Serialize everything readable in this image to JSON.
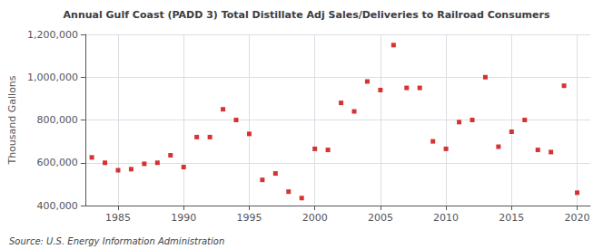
{
  "chart_data": {
    "type": "scatter",
    "title": "Annual Gulf Coast (PADD 3) Total Distillate Adj Sales/Deliveries to Railroad Consumers",
    "ylabel": "Thousand Gallons",
    "annotations": [
      "Source: U.S. Energy Information Administration"
    ],
    "x": [
      1983,
      1984,
      1985,
      1986,
      1987,
      1988,
      1989,
      1990,
      1991,
      1992,
      1993,
      1994,
      1995,
      1996,
      1997,
      1998,
      1999,
      2000,
      2001,
      2002,
      2003,
      2004,
      2005,
      2006,
      2007,
      2008,
      2009,
      2010,
      2011,
      2012,
      2013,
      2014,
      2015,
      2016,
      2017,
      2018,
      2019,
      2020
    ],
    "values": [
      625000,
      600000,
      565000,
      570000,
      595000,
      600000,
      635000,
      580000,
      720000,
      720000,
      850000,
      800000,
      735000,
      520000,
      550000,
      465000,
      435000,
      665000,
      660000,
      880000,
      840000,
      980000,
      940000,
      1150000,
      950000,
      950000,
      700000,
      665000,
      790000,
      800000,
      1000000,
      675000,
      745000,
      800000,
      660000,
      650000,
      960000,
      460000
    ],
    "color": "#cc0000",
    "marker": "square",
    "xlim": [
      1982.5,
      2021
    ],
    "xticks": [
      1985,
      1990,
      1995,
      2000,
      2005,
      2010,
      2015,
      2020
    ],
    "ylim": [
      400000,
      1200000
    ],
    "yticks": [
      {
        "value": 400000,
        "label": "400,000"
      },
      {
        "value": 600000,
        "label": "600,000"
      },
      {
        "value": 800000,
        "label": "800,000"
      },
      {
        "value": 1000000,
        "label": "1,000,000"
      },
      {
        "value": 1200000,
        "label": "1,200,000"
      }
    ],
    "grid": true
  }
}
